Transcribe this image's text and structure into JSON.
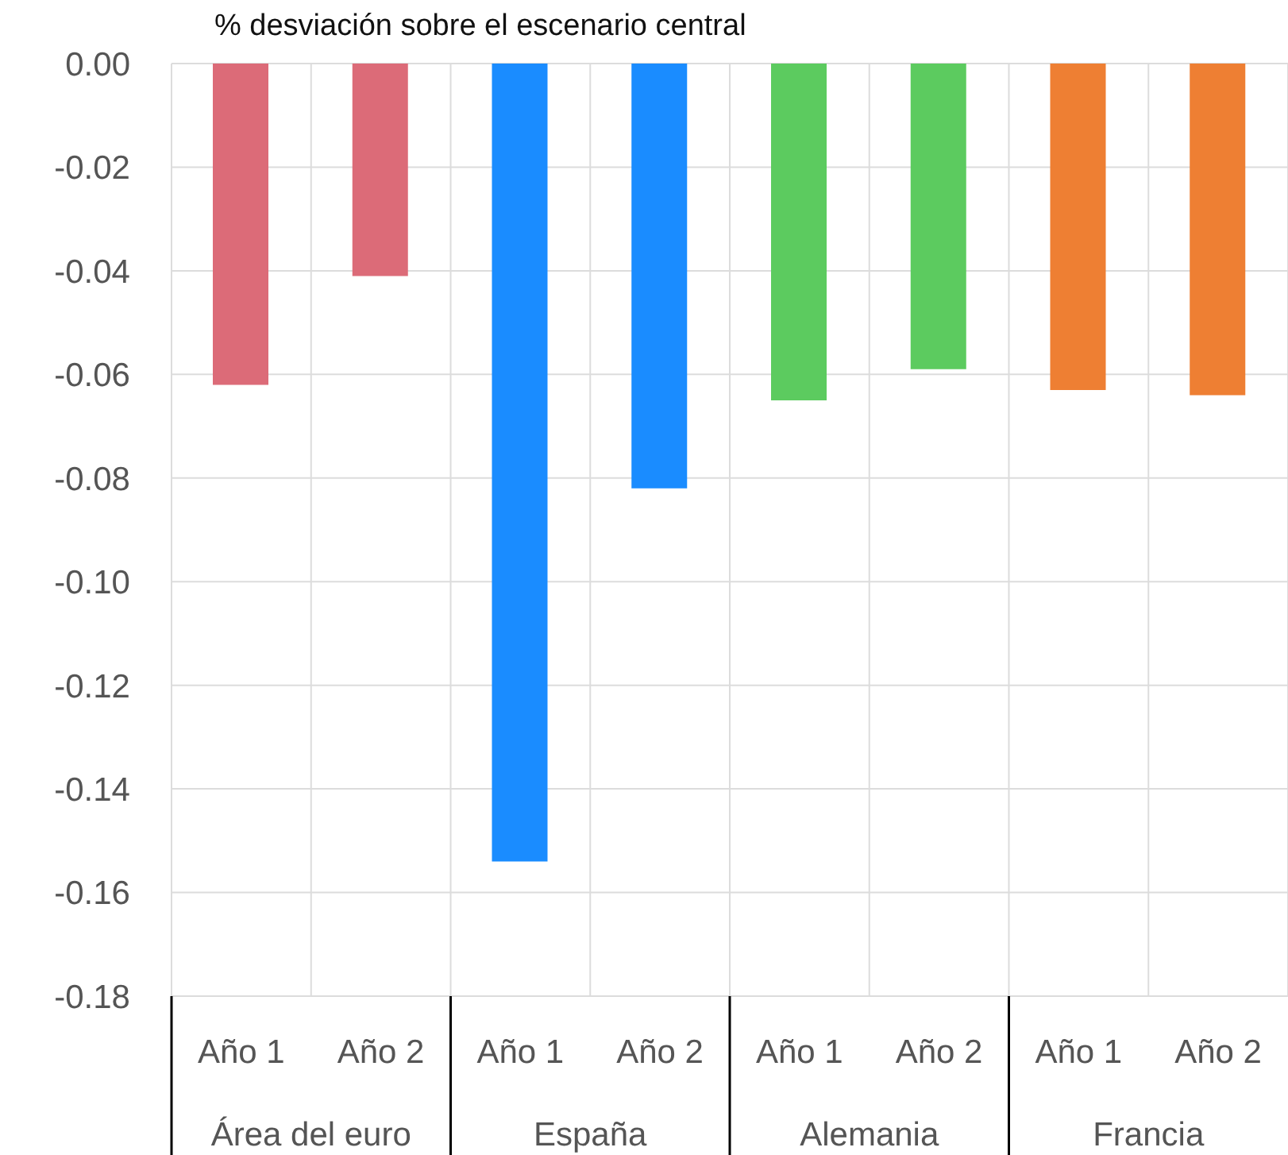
{
  "chart_data": {
    "type": "bar",
    "title": "% desviación sobre el escenario central",
    "categories": [
      "Año 1",
      "Año 2",
      "Año 1",
      "Año 2",
      "Año 1",
      "Año 2",
      "Año 1",
      "Año 2"
    ],
    "values": [
      -0.062,
      -0.041,
      -0.154,
      -0.082,
      -0.065,
      -0.059,
      -0.063,
      -0.064
    ],
    "colors": [
      "#dc6b78",
      "#dc6b78",
      "#1a8cff",
      "#1a8cff",
      "#5ccb5f",
      "#5ccb5f",
      "#ee7f33",
      "#ee7f33"
    ],
    "annotations": [
      "Área del euro",
      "España",
      "Alemania",
      "Francia"
    ],
    "ylim": [
      -0.18,
      0
    ],
    "yticks": [
      {
        "value": 0,
        "label": "0.00"
      },
      {
        "value": -0.02,
        "label": "-0.02"
      },
      {
        "value": -0.04,
        "label": "-0.04"
      },
      {
        "value": -0.06,
        "label": "-0.06"
      },
      {
        "value": -0.08,
        "label": "-0.08"
      },
      {
        "value": -0.1,
        "label": "-0.10"
      },
      {
        "value": -0.12,
        "label": "-0.12"
      },
      {
        "value": -0.14,
        "label": "-0.14"
      },
      {
        "value": -0.16,
        "label": "-0.16"
      },
      {
        "value": -0.18,
        "label": "-0.18"
      }
    ],
    "grid": true
  }
}
